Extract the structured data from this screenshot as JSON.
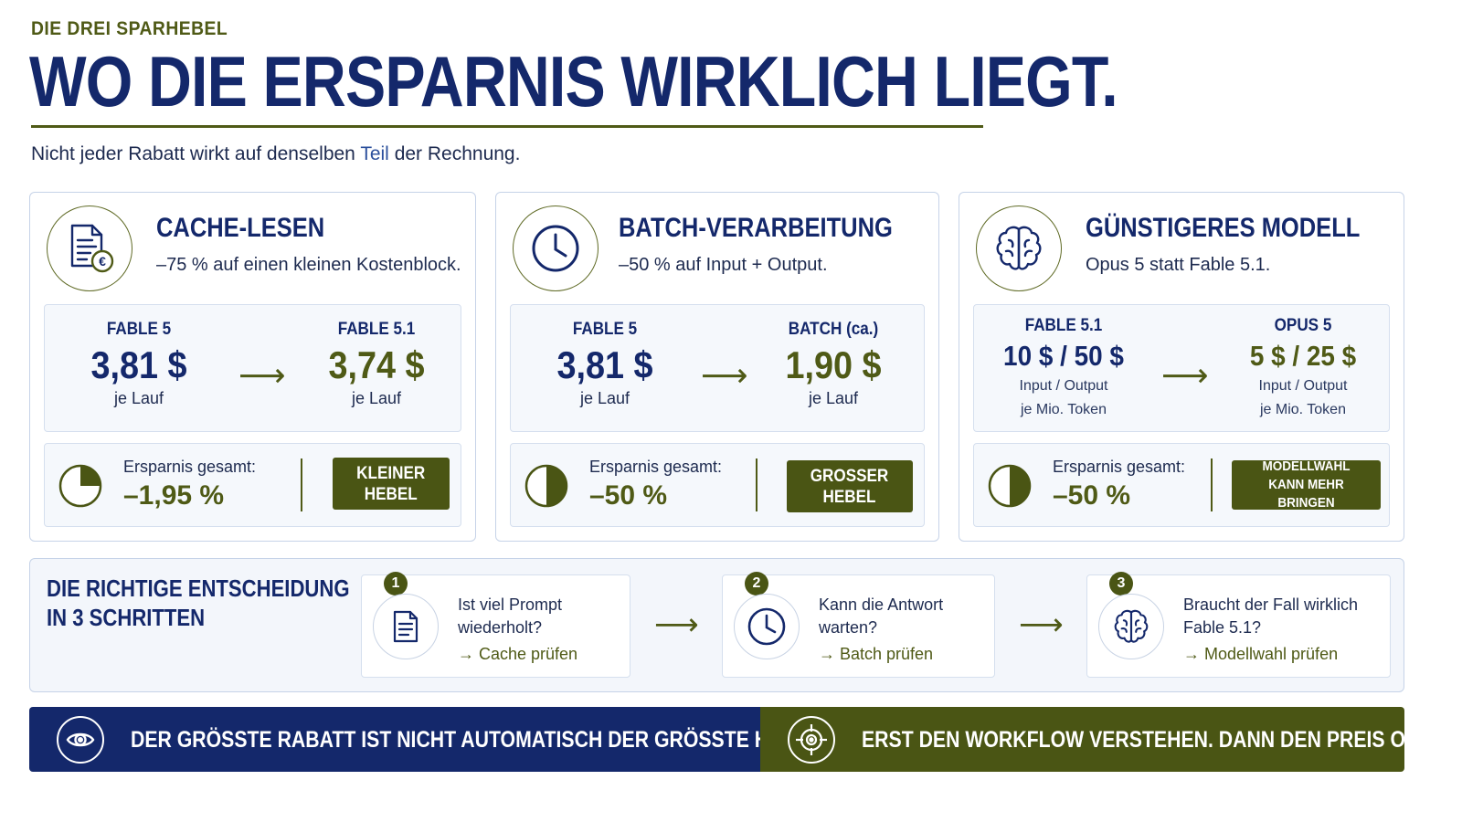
{
  "header": {
    "kicker": "DIE DREI SPARHEBEL",
    "title": "WO DIE ERSPARNIS WIRKLICH LIEGT.",
    "subtitle_before": "Nicht jeder Rabatt wirkt auf denselben",
    "subtitle_highlight": "Teil",
    "subtitle_after": "der Rechnung."
  },
  "cards": [
    {
      "icon": "document-euro-icon",
      "title": "CACHE-LESEN",
      "subtitle": "–75 % auf einen kleinen Kostenblock.",
      "from": {
        "label": "FABLE 5",
        "value": "3,81 $",
        "unit": "je Lauf"
      },
      "to": {
        "label": "FABLE 5.1",
        "value": "3,74 $",
        "unit": "je Lauf"
      },
      "savings_label": "Ersparnis gesamt:",
      "savings_value": "–1,95 %",
      "savings_fraction": 0.25,
      "badge_line1": "KLEINER",
      "badge_line2": "HEBEL"
    },
    {
      "icon": "clock-icon",
      "title": "BATCH-VERARBEITUNG",
      "subtitle": "–50 % auf Input + Output.",
      "from": {
        "label": "FABLE 5",
        "value": "3,81 $",
        "unit": "je Lauf"
      },
      "to": {
        "label": "BATCH (ca.)",
        "value": "1,90 $",
        "unit": "je Lauf"
      },
      "savings_label": "Ersparnis gesamt:",
      "savings_value": "–50 %",
      "savings_fraction": 0.5,
      "badge_line1": "GROSSER",
      "badge_line2": "HEBEL"
    },
    {
      "icon": "brain-icon",
      "title": "GÜNSTIGERES MODELL",
      "subtitle": "Opus 5 statt Fable 5.1.",
      "from": {
        "label": "FABLE 5.1",
        "value": "10 $ / 50 $",
        "unit1": "Input / Output",
        "unit2": "je Mio. Token"
      },
      "to": {
        "label": "OPUS 5",
        "value": "5 $ / 25 $",
        "unit1": "Input / Output",
        "unit2": "je Mio. Token"
      },
      "savings_label": "Ersparnis gesamt:",
      "savings_value": "–50 %",
      "savings_fraction": 0.5,
      "badge_line1": "MODELLWAHL",
      "badge_line2": "KANN MEHR BRINGEN"
    }
  ],
  "steps": {
    "title_line1": "DIE RICHTIGE ENTSCHEIDUNG",
    "title_line2": "IN 3 SCHRITTEN",
    "items": [
      {
        "num": "1",
        "icon": "document-icon",
        "line1": "Ist viel Prompt",
        "line2": "wiederholt?",
        "action": "→ Cache prüfen"
      },
      {
        "num": "2",
        "icon": "clock-icon",
        "line1": "Kann die Antwort",
        "line2": "warten?",
        "action": "→ Batch prüfen"
      },
      {
        "num": "3",
        "icon": "brain-icon",
        "line1": "Braucht der Fall wirklich",
        "line2": "Fable 5.1?",
        "action": "→ Modellwahl prüfen"
      }
    ]
  },
  "footer": {
    "left_icon": "eye-icon",
    "left_text": "DER GRÖSSTE RABATT IST NICHT AUTOMATISCH DER GRÖSSTE HEBEL.",
    "right_icon": "target-icon",
    "right_text": "ERST DEN WORKFLOW VERSTEHEN. DANN DEN PREIS OPTIMIEREN."
  },
  "colors": {
    "navy": "#14286b",
    "olive": "#4f5a16",
    "olive_dark": "#4a5514",
    "border": "#c6d3e8",
    "panel": "#f5f8fc"
  }
}
